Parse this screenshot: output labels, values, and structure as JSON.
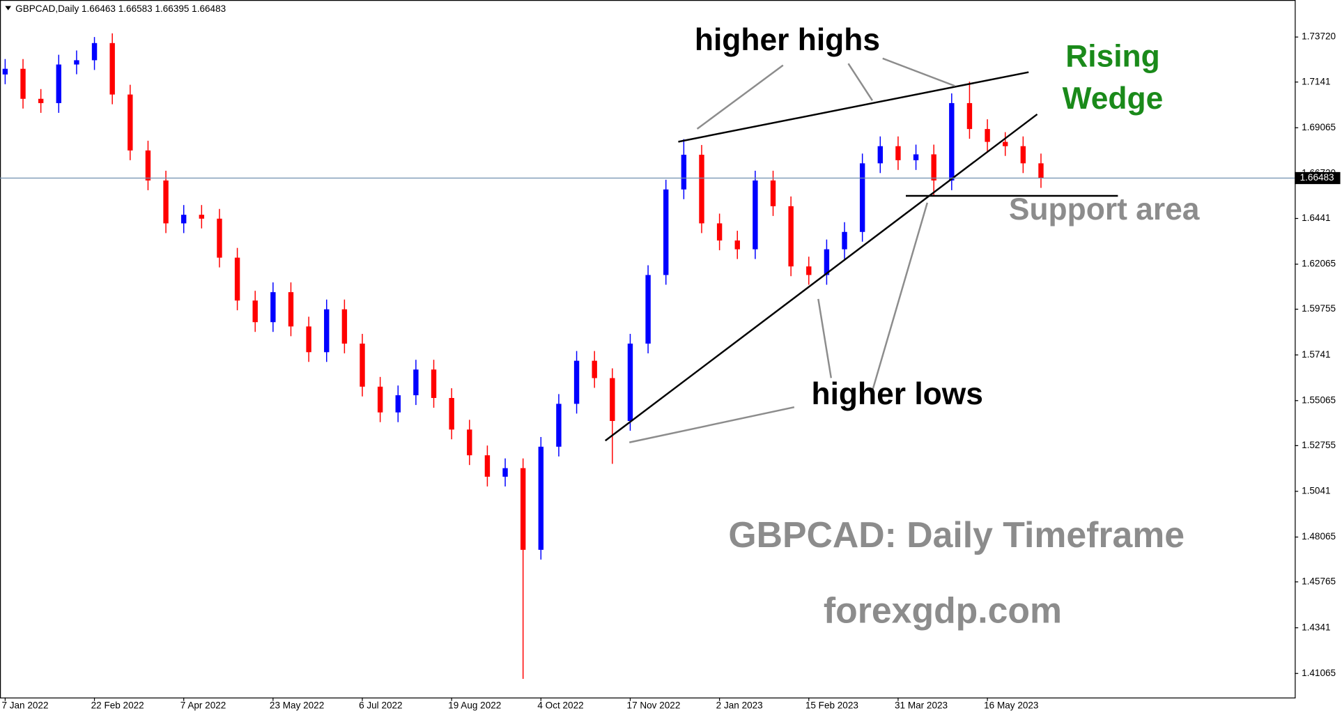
{
  "chart_data": {
    "type": "candlestick",
    "header": "GBPCAD,Daily  1.66463 1.66583 1.66395 1.66483",
    "categories": [
      "7 Jan 2022",
      null,
      null,
      null,
      null,
      "22 Feb 2022",
      null,
      null,
      null,
      null,
      "7 Apr 2022",
      null,
      null,
      null,
      null,
      "23 May 2022",
      null,
      null,
      null,
      null,
      "6 Jul 2022",
      null,
      null,
      null,
      null,
      "19 Aug 2022",
      null,
      null,
      null,
      null,
      "4 Oct 2022",
      null,
      null,
      null,
      null,
      "17 Nov 2022",
      null,
      null,
      null,
      null,
      "2 Jan 2023",
      null,
      null,
      null,
      null,
      "15 Feb 2023",
      null,
      null,
      null,
      null,
      "31 Mar 2023",
      null,
      null,
      null,
      null,
      "16 May 2023",
      null,
      null,
      null
    ],
    "open": [
      1.718,
      1.7209,
      1.7055,
      1.7033,
      1.7231,
      1.7253,
      1.7341,
      1.7077,
      1.679,
      1.6636,
      1.6416,
      1.646,
      1.644,
      1.624,
      1.602,
      1.5909,
      1.6063,
      1.5887,
      1.5755,
      1.5975,
      1.5799,
      1.5578,
      1.5446,
      1.5534,
      1.5666,
      1.552,
      1.5358,
      1.5226,
      1.5116,
      1.516,
      1.4741,
      1.527,
      1.549,
      1.5711,
      1.5622,
      1.5402,
      1.5799,
      1.6151,
      1.659,
      1.6768,
      1.6416,
      1.6328,
      1.6283,
      1.6636,
      1.6504,
      1.6195,
      1.6151,
      1.6283,
      1.6372,
      1.6724,
      1.6812,
      1.674,
      1.677,
      1.6636,
      1.7033,
      1.69,
      1.6834,
      1.6812,
      1.6724
    ],
    "high": [
      1.7259,
      1.7259,
      1.7105,
      1.7281,
      1.7303,
      1.7372,
      1.7391,
      1.7127,
      1.684,
      1.6686,
      1.651,
      1.651,
      1.649,
      1.629,
      1.607,
      1.6113,
      1.6113,
      1.5937,
      1.6025,
      1.6025,
      1.5849,
      1.5628,
      1.5584,
      1.5716,
      1.5716,
      1.557,
      1.5408,
      1.5276,
      1.521,
      1.521,
      1.532,
      1.554,
      1.5761,
      1.5761,
      1.5672,
      1.5849,
      1.6201,
      1.664,
      1.6848,
      1.6818,
      1.6466,
      1.6378,
      1.6686,
      1.6686,
      1.6554,
      1.6245,
      1.6333,
      1.6422,
      1.6774,
      1.6862,
      1.6862,
      1.682,
      1.682,
      1.7083,
      1.7143,
      1.695,
      1.6884,
      1.6862,
      1.6774
    ],
    "low": [
      1.713,
      1.7005,
      1.6983,
      1.6983,
      1.7181,
      1.7203,
      1.7027,
      1.674,
      1.6586,
      1.6366,
      1.6366,
      1.639,
      1.619,
      1.597,
      1.5859,
      1.5859,
      1.5837,
      1.5705,
      1.5705,
      1.5749,
      1.5528,
      1.5396,
      1.5396,
      1.5484,
      1.547,
      1.5308,
      1.5176,
      1.5066,
      1.5066,
      1.4079,
      1.4691,
      1.522,
      1.544,
      1.5572,
      1.5182,
      1.5352,
      1.5749,
      1.6101,
      1.654,
      1.6366,
      1.6278,
      1.6233,
      1.6233,
      1.6454,
      1.6145,
      1.6101,
      1.6101,
      1.6233,
      1.6322,
      1.6674,
      1.669,
      1.669,
      1.6557,
      1.6586,
      1.685,
      1.6784,
      1.6762,
      1.6674,
      1.6598
    ],
    "close": [
      1.7209,
      1.7055,
      1.7033,
      1.7231,
      1.7253,
      1.7341,
      1.7077,
      1.679,
      1.6636,
      1.6416,
      1.646,
      1.644,
      1.624,
      1.602,
      1.5909,
      1.6063,
      1.5887,
      1.5755,
      1.5975,
      1.5799,
      1.5578,
      1.5446,
      1.5534,
      1.5666,
      1.552,
      1.5358,
      1.5226,
      1.5116,
      1.516,
      1.4741,
      1.527,
      1.549,
      1.5711,
      1.5622,
      1.5402,
      1.5799,
      1.6151,
      1.659,
      1.6768,
      1.6416,
      1.6328,
      1.6283,
      1.6636,
      1.6504,
      1.6195,
      1.6151,
      1.6283,
      1.6372,
      1.6724,
      1.6812,
      1.674,
      1.677,
      1.6636,
      1.7033,
      1.69,
      1.6834,
      1.6812,
      1.6724,
      1.6648
    ],
    "up_color": "#0000ff",
    "down_color": "#ff0000",
    "ylim": [
      1.3983,
      1.7562
    ],
    "yticks": [
      {
        "value": 1.7372,
        "label": "1.73720"
      },
      1.7141,
      1.69065,
      {
        "value": 1.6672,
        "label": "1.66720"
      },
      1.6441,
      1.62065,
      1.59755,
      1.5741,
      1.55065,
      1.52755,
      1.5041,
      1.48065,
      1.45765,
      1.4341,
      1.41065
    ],
    "current_price": 1.66483,
    "annotations": [
      "higher highs",
      "Rising",
      "Wedge",
      "Support area",
      "higher lows",
      "GBPCAD: Daily Timeframe",
      "forexgdp.com"
    ]
  }
}
